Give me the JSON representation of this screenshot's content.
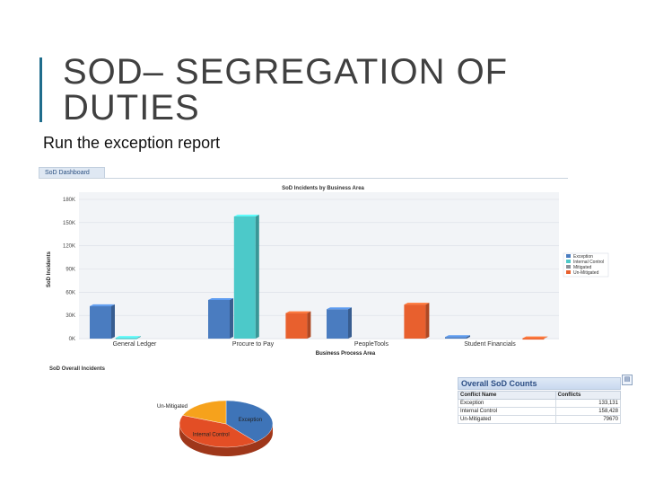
{
  "slide": {
    "title": "SOD– SEGREGATION OF DUTIES",
    "subtitle": "Run the exception report"
  },
  "dashboard": {
    "tab_label": "SoD Dashboard"
  },
  "chart_data": {
    "type": "bar",
    "title": "SoD Incidents by Business Area",
    "xlabel": "Business Process Area",
    "ylabel": "SoD Incidents",
    "ylim": [
      0,
      180000
    ],
    "y_ticks": [
      "0K",
      "30K",
      "60K",
      "90K",
      "120K",
      "150K",
      "180K"
    ],
    "categories": [
      "General Ledger",
      "Procure to Pay",
      "PeopleTools",
      "Student Financials"
    ],
    "series": [
      {
        "name": "Exception",
        "color": "#4a7cc0",
        "values": [
          42000,
          50000,
          38000,
          2000
        ]
      },
      {
        "name": "Internal Control",
        "color": "#4cc9c9",
        "values": [
          1000,
          158000,
          0,
          0
        ]
      },
      {
        "name": "Mitigated",
        "color": "#8a8f98",
        "values": [
          0,
          0,
          0,
          0
        ]
      },
      {
        "name": "Un-Mitigated",
        "color": "#e8602e",
        "values": [
          0,
          33000,
          44000,
          500
        ]
      }
    ],
    "legend": "right",
    "grid": true
  },
  "pie": {
    "title": "SoD Overall Incidents",
    "slices": [
      {
        "label": "Exception",
        "color": "#3e74b8",
        "value": 0.39
      },
      {
        "label": "Internal Control",
        "color": "#e34e25",
        "value": 0.42
      },
      {
        "label": "Un-Mitigated",
        "color": "#f6a21c",
        "value": 0.19
      }
    ]
  },
  "counts": {
    "title": "Overall SoD Counts",
    "button_icon": "chart-icon",
    "columns": [
      "Conflict Name",
      "Conflicts"
    ],
    "rows": [
      {
        "name": "Exception",
        "count": "133,131"
      },
      {
        "name": "Internal Control",
        "count": "158,428"
      },
      {
        "name": "Un-Mitigated",
        "count": "79670"
      }
    ]
  }
}
